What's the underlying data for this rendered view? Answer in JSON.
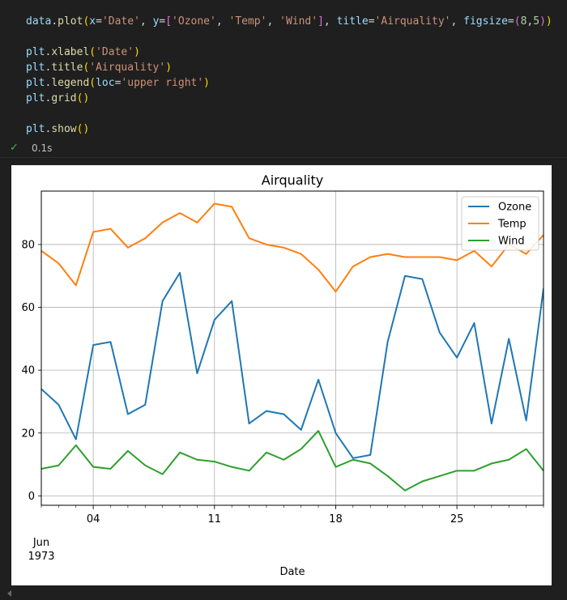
{
  "code": {
    "lines": [
      [
        {
          "t": "data",
          "c": "#9cdcfe"
        },
        {
          "t": ".",
          "c": "#d4d4d4"
        },
        {
          "t": "plot",
          "c": "#dcdcaa"
        },
        {
          "t": "(",
          "c": "#ffd700"
        },
        {
          "t": "x",
          "c": "#9cdcfe"
        },
        {
          "t": "=",
          "c": "#d4d4d4"
        },
        {
          "t": "'Date'",
          "c": "#ce9178"
        },
        {
          "t": ", ",
          "c": "#d4d4d4"
        },
        {
          "t": "y",
          "c": "#9cdcfe"
        },
        {
          "t": "=",
          "c": "#d4d4d4"
        },
        {
          "t": "[",
          "c": "#da70d6"
        },
        {
          "t": "'Ozone'",
          "c": "#ce9178"
        },
        {
          "t": ", ",
          "c": "#d4d4d4"
        },
        {
          "t": "'Temp'",
          "c": "#ce9178"
        },
        {
          "t": ", ",
          "c": "#d4d4d4"
        },
        {
          "t": "'Wind'",
          "c": "#ce9178"
        },
        {
          "t": "]",
          "c": "#da70d6"
        },
        {
          "t": ", ",
          "c": "#d4d4d4"
        },
        {
          "t": "title",
          "c": "#9cdcfe"
        },
        {
          "t": "=",
          "c": "#d4d4d4"
        },
        {
          "t": "'Airquality'",
          "c": "#ce9178"
        },
        {
          "t": ", ",
          "c": "#d4d4d4"
        },
        {
          "t": "figsize",
          "c": "#9cdcfe"
        },
        {
          "t": "=",
          "c": "#d4d4d4"
        },
        {
          "t": "(",
          "c": "#da70d6"
        },
        {
          "t": "8",
          "c": "#b5cea8"
        },
        {
          "t": ",",
          "c": "#d4d4d4"
        },
        {
          "t": "5",
          "c": "#b5cea8"
        },
        {
          "t": ")",
          "c": "#da70d6"
        },
        {
          "t": ")",
          "c": "#ffd700"
        }
      ],
      [],
      [
        {
          "t": "plt",
          "c": "#9cdcfe"
        },
        {
          "t": ".",
          "c": "#d4d4d4"
        },
        {
          "t": "xlabel",
          "c": "#dcdcaa"
        },
        {
          "t": "(",
          "c": "#ffd700"
        },
        {
          "t": "'Date'",
          "c": "#ce9178"
        },
        {
          "t": ")",
          "c": "#ffd700"
        }
      ],
      [
        {
          "t": "plt",
          "c": "#9cdcfe"
        },
        {
          "t": ".",
          "c": "#d4d4d4"
        },
        {
          "t": "title",
          "c": "#dcdcaa"
        },
        {
          "t": "(",
          "c": "#ffd700"
        },
        {
          "t": "'Airquality'",
          "c": "#ce9178"
        },
        {
          "t": ")",
          "c": "#ffd700"
        }
      ],
      [
        {
          "t": "plt",
          "c": "#9cdcfe"
        },
        {
          "t": ".",
          "c": "#d4d4d4"
        },
        {
          "t": "legend",
          "c": "#dcdcaa"
        },
        {
          "t": "(",
          "c": "#ffd700"
        },
        {
          "t": "loc",
          "c": "#9cdcfe"
        },
        {
          "t": "=",
          "c": "#d4d4d4"
        },
        {
          "t": "'upper right'",
          "c": "#ce9178"
        },
        {
          "t": ")",
          "c": "#ffd700"
        }
      ],
      [
        {
          "t": "plt",
          "c": "#9cdcfe"
        },
        {
          "t": ".",
          "c": "#d4d4d4"
        },
        {
          "t": "grid",
          "c": "#dcdcaa"
        },
        {
          "t": "()",
          "c": "#ffd700"
        }
      ],
      [],
      [
        {
          "t": "plt",
          "c": "#9cdcfe"
        },
        {
          "t": ".",
          "c": "#d4d4d4"
        },
        {
          "t": "show",
          "c": "#dcdcaa"
        },
        {
          "t": "()",
          "c": "#ffd700"
        }
      ]
    ]
  },
  "status": {
    "check_icon": "check-icon",
    "check_glyph": "✓",
    "timing": "0.1s",
    "color": "#3fb950"
  },
  "chart_data": {
    "type": "line",
    "title": "Airquality",
    "xlabel": "Date",
    "ylabel": "",
    "x": [
      1,
      2,
      3,
      4,
      5,
      6,
      7,
      8,
      9,
      10,
      11,
      12,
      13,
      14,
      15,
      16,
      17,
      18,
      19,
      20,
      21,
      22,
      23,
      24,
      25,
      26,
      27,
      28,
      29,
      30
    ],
    "xlim": [
      1,
      30
    ],
    "ylim": [
      -3,
      97
    ],
    "yticks": [
      0,
      20,
      40,
      60,
      80
    ],
    "xticks": [
      {
        "x": 4,
        "label": "04"
      },
      {
        "x": 11,
        "label": "11"
      },
      {
        "x": 18,
        "label": "18"
      },
      {
        "x": 25,
        "label": "25"
      }
    ],
    "xtick_minor_every": 1,
    "x_start_label": [
      "Jun",
      "1973"
    ],
    "grid": true,
    "legend": "upper right",
    "series": [
      {
        "name": "Ozone",
        "color": "#1f77b4",
        "values": [
          34,
          29,
          18,
          48,
          49,
          26,
          29,
          62,
          71,
          39,
          56,
          62,
          23,
          27,
          26,
          21,
          37,
          20,
          12,
          13,
          49,
          70,
          69,
          52,
          44,
          55,
          23,
          50,
          24,
          66
        ]
      },
      {
        "name": "Temp",
        "color": "#ff7f0e",
        "values": [
          78,
          74,
          67,
          84,
          85,
          79,
          82,
          87,
          90,
          87,
          93,
          92,
          82,
          80,
          79,
          77,
          72,
          65,
          73,
          76,
          77,
          76,
          76,
          76,
          75,
          78,
          73,
          80,
          77,
          83
        ]
      },
      {
        "name": "Wind",
        "color": "#2ca02c",
        "values": [
          8.6,
          9.7,
          16.1,
          9.2,
          8.6,
          14.3,
          9.7,
          6.9,
          13.8,
          11.5,
          10.9,
          9.2,
          8.0,
          13.8,
          11.5,
          14.9,
          20.7,
          9.2,
          11.5,
          10.3,
          6.3,
          1.7,
          4.6,
          6.3,
          8.0,
          8.0,
          10.3,
          11.5,
          14.9,
          8.0
        ]
      }
    ]
  }
}
